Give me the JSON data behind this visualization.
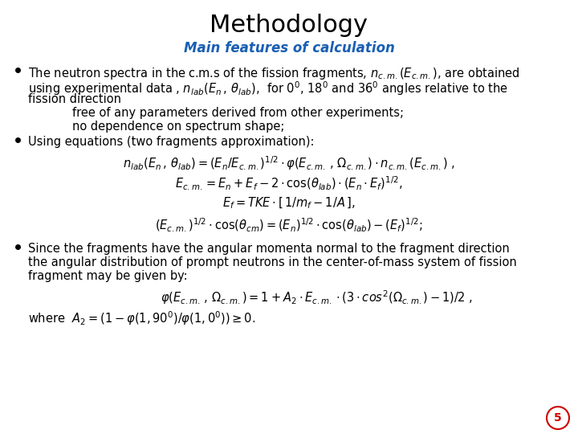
{
  "title": "Methodology",
  "subtitle": "Main features of calculation",
  "title_color": "#000000",
  "subtitle_color": "#1a5fb4",
  "background_color": "#FFFFFF",
  "page_number": "5",
  "page_number_color": "#cc0000",
  "fig_width": 7.2,
  "fig_height": 5.4,
  "dpi": 100
}
